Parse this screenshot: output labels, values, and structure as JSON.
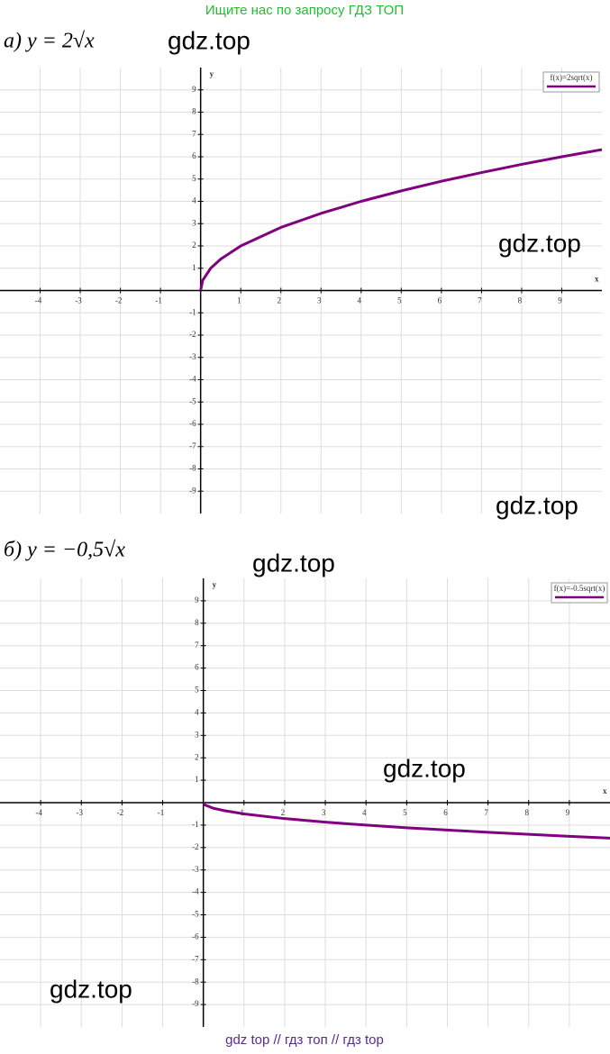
{
  "header": "Ищите нас по запросу ГДЗ ТОП",
  "footer": "gdz top  //  гдз топ  //  гдз top",
  "watermarks": [
    "gdz.top",
    "gdz.top",
    "gdz.top",
    "gdz.top",
    "gdz.top",
    "gdz.top"
  ],
  "chart_data": [
    {
      "type": "line",
      "title": "а) y = 2√x",
      "x_label": "x",
      "y_label": "y",
      "x": [
        0,
        0.05,
        0.25,
        0.5,
        1,
        2,
        3,
        4,
        5,
        6,
        7,
        8,
        9,
        10
      ],
      "series": [
        {
          "name": "f(x)=2sqrt(x)",
          "color": "#800080",
          "values": [
            0,
            0.45,
            1,
            1.41,
            2,
            2.83,
            3.46,
            4,
            4.47,
            4.9,
            5.29,
            5.66,
            6,
            6.32
          ]
        }
      ],
      "xlim": [
        -5,
        10
      ],
      "ylim": [
        -10,
        10
      ],
      "xticks": [
        -4,
        -3,
        -2,
        -1,
        1,
        2,
        3,
        4,
        5,
        6,
        7,
        8,
        9
      ],
      "yticks": [
        -9,
        -8,
        -7,
        -6,
        -5,
        -4,
        -3,
        -2,
        -1,
        1,
        2,
        3,
        4,
        5,
        6,
        7,
        8,
        9
      ],
      "grid": true,
      "legend": "top-right"
    },
    {
      "type": "line",
      "title": "б) y = −0,5√x",
      "x_label": "x",
      "y_label": "y",
      "x": [
        0,
        0.05,
        0.25,
        0.5,
        1,
        2,
        3,
        4,
        5,
        6,
        7,
        8,
        9,
        10
      ],
      "series": [
        {
          "name": "f(x)=-0.5sqrt(x)",
          "color": "#800080",
          "values": [
            0,
            -0.11,
            -0.25,
            -0.35,
            -0.5,
            -0.71,
            -0.87,
            -1,
            -1.12,
            -1.22,
            -1.32,
            -1.41,
            -1.5,
            -1.58
          ]
        }
      ],
      "xlim": [
        -5,
        10
      ],
      "ylim": [
        -10,
        10
      ],
      "xticks": [
        -4,
        -3,
        -2,
        -1,
        1,
        2,
        3,
        4,
        5,
        6,
        7,
        8,
        9
      ],
      "yticks": [
        -9,
        -8,
        -7,
        -6,
        -5,
        -4,
        -3,
        -2,
        -1,
        1,
        2,
        3,
        4,
        5,
        6,
        7,
        8,
        9
      ],
      "grid": true,
      "legend": "top-right"
    }
  ]
}
